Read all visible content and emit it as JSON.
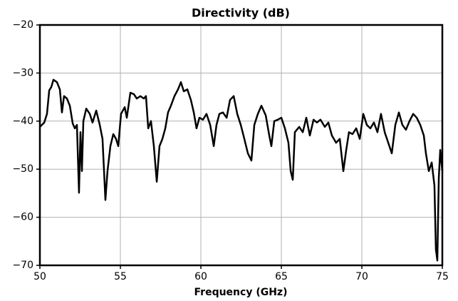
{
  "chart_data": {
    "type": "line",
    "title": "Directivity (dB)",
    "x_label": "Frequency (GHz)",
    "x": [
      50,
      50.27,
      50.44,
      50.58,
      50.71,
      50.84,
      51.06,
      51.24,
      51.37,
      51.5,
      51.68,
      51.86,
      52.04,
      52.17,
      52.3,
      52.43,
      52.52,
      52.61,
      52.7,
      52.88,
      53.1,
      53.27,
      53.5,
      53.72,
      53.89,
      54.07,
      54.2,
      54.38,
      54.56,
      54.73,
      54.87,
      55.04,
      55.27,
      55.4,
      55.62,
      55.84,
      56.02,
      56.24,
      56.46,
      56.59,
      56.73,
      56.9,
      57.08,
      57.26,
      57.43,
      57.61,
      57.79,
      57.96,
      58.14,
      58.36,
      58.58,
      58.76,
      58.94,
      59.16,
      59.38,
      59.56,
      59.73,
      59.91,
      60.13,
      60.35,
      60.58,
      60.8,
      60.97,
      61.15,
      61.37,
      61.6,
      61.81,
      62.04,
      62.26,
      62.48,
      62.7,
      62.92,
      63.14,
      63.32,
      63.54,
      63.76,
      64.03,
      64.25,
      64.38,
      64.56,
      64.78,
      65,
      65.22,
      65.44,
      65.58,
      65.71,
      65.84,
      66.11,
      66.33,
      66.55,
      66.77,
      67,
      67.21,
      67.43,
      67.7,
      67.92,
      68.14,
      68.4,
      68.63,
      68.85,
      69.03,
      69.2,
      69.42,
      69.65,
      69.87,
      70.09,
      70.31,
      70.53,
      70.75,
      70.97,
      71.19,
      71.42,
      71.64,
      71.86,
      72.08,
      72.3,
      72.52,
      72.74,
      72.96,
      73.19,
      73.41,
      73.63,
      73.85,
      73.98,
      74.16,
      74.34,
      74.51,
      74.6,
      74.69,
      74.78,
      74.87,
      75
    ],
    "series": [
      {
        "color": "#000000",
        "values": [
          -41.2,
          -40.3,
          -38.5,
          -33.6,
          -32.9,
          -31.4,
          -31.9,
          -33.4,
          -38.2,
          -34.8,
          -35.3,
          -36.8,
          -40.5,
          -41.5,
          -40.8,
          -54.9,
          -42.3,
          -50.4,
          -40.0,
          -37.4,
          -38.5,
          -40.3,
          -37.8,
          -40.8,
          -43.7,
          -56.4,
          -50.4,
          -45.2,
          -42.7,
          -43.7,
          -45.2,
          -38.5,
          -37.1,
          -39.3,
          -34.1,
          -34.4,
          -35.3,
          -34.8,
          -35.3,
          -34.8,
          -41.5,
          -40.0,
          -45.2,
          -52.6,
          -45.2,
          -43.7,
          -41.5,
          -38.2,
          -36.8,
          -34.8,
          -33.4,
          -31.9,
          -33.8,
          -33.4,
          -35.6,
          -38.2,
          -41.5,
          -39.3,
          -39.7,
          -38.5,
          -40.8,
          -45.2,
          -40.8,
          -38.5,
          -38.2,
          -39.3,
          -35.6,
          -34.8,
          -38.5,
          -40.8,
          -43.7,
          -46.7,
          -48.2,
          -40.8,
          -38.5,
          -36.8,
          -38.8,
          -43.0,
          -45.2,
          -40.0,
          -39.7,
          -39.3,
          -41.5,
          -44.5,
          -50.4,
          -52.2,
          -42.3,
          -41.2,
          -42.3,
          -39.3,
          -43.0,
          -39.7,
          -40.3,
          -39.7,
          -41.2,
          -40.3,
          -43.0,
          -44.5,
          -43.7,
          -50.4,
          -46.0,
          -42.3,
          -42.7,
          -41.5,
          -43.7,
          -38.5,
          -40.8,
          -41.5,
          -40.3,
          -42.3,
          -38.5,
          -42.3,
          -44.5,
          -46.7,
          -40.8,
          -38.2,
          -40.8,
          -41.8,
          -40.0,
          -38.5,
          -39.3,
          -40.8,
          -43.0,
          -46.7,
          -50.4,
          -48.6,
          -53.4,
          -66.7,
          -69.0,
          -51.9,
          -46.0,
          -50.4
        ]
      }
    ],
    "xlim": [
      50,
      75
    ],
    "xticks": [
      50,
      55,
      60,
      65,
      70,
      75
    ],
    "ylim": [
      -70,
      -20
    ],
    "yticks": [
      {
        "value": -70,
        "label": "−70"
      },
      {
        "value": -60,
        "label": "−60"
      },
      {
        "value": -50,
        "label": "−50"
      },
      {
        "value": -40,
        "label": "−40"
      },
      {
        "value": -30,
        "label": "−30"
      },
      {
        "value": -20,
        "label": "−20"
      }
    ],
    "grid": true
  }
}
